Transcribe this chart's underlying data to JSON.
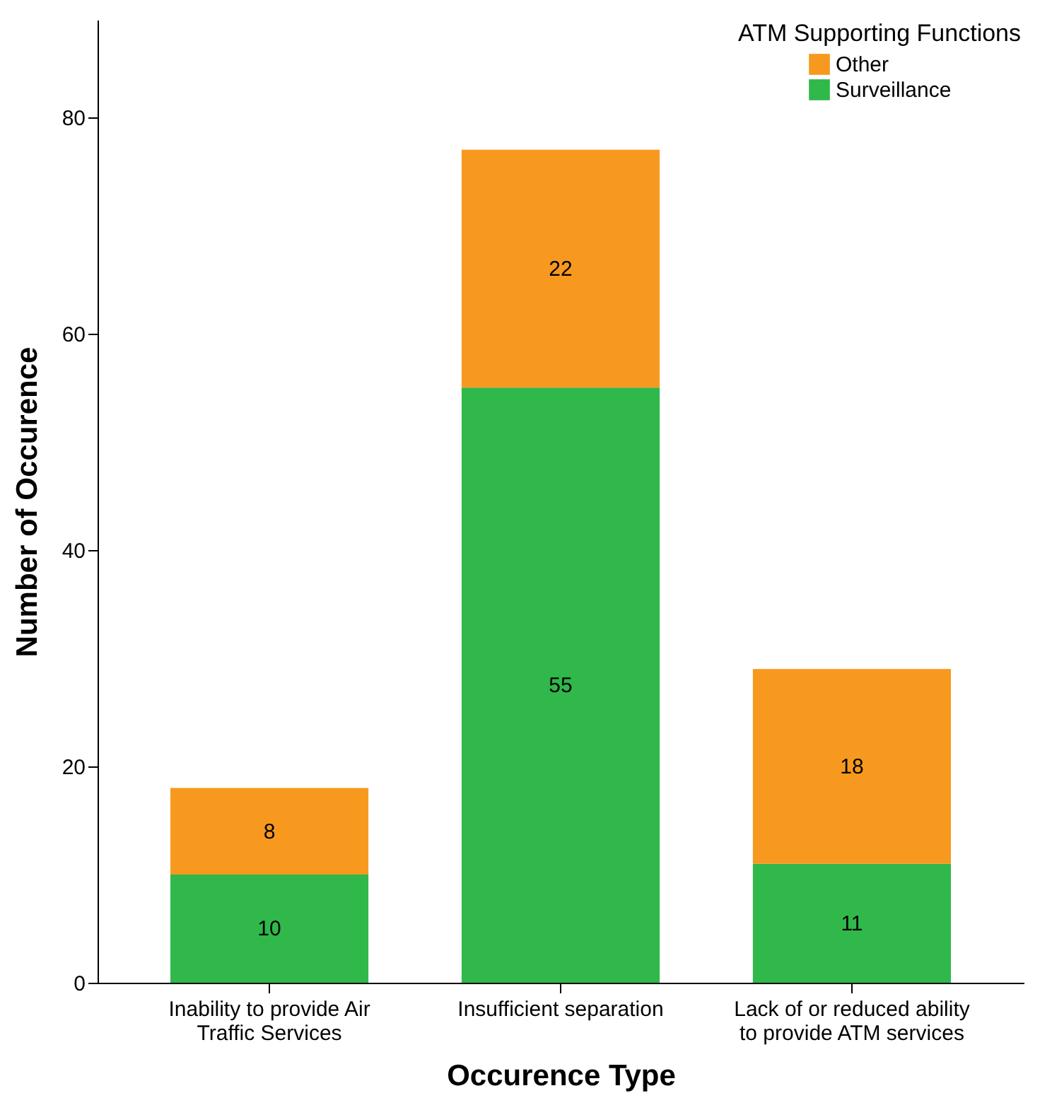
{
  "chart_data": {
    "type": "bar",
    "stacked": true,
    "xlabel": "Occurence Type",
    "ylabel": "Number of Occurence",
    "legend_title": "ATM Supporting Functions",
    "legend": "top right",
    "data_labels": true,
    "grid": false,
    "categories": [
      "Inability to provide Air Traffic Services",
      "Insufficient separation",
      "Lack of or reduced ability to provide ATM services"
    ],
    "series": [
      {
        "name": "Surveillance",
        "color": "#30b84a",
        "values": [
          10,
          55,
          11
        ]
      },
      {
        "name": "Other",
        "color": "#f7991f",
        "values": [
          8,
          22,
          18
        ]
      }
    ],
    "ylim": [
      0,
      89
    ],
    "yticks": [
      0,
      20,
      40,
      60,
      80
    ]
  }
}
